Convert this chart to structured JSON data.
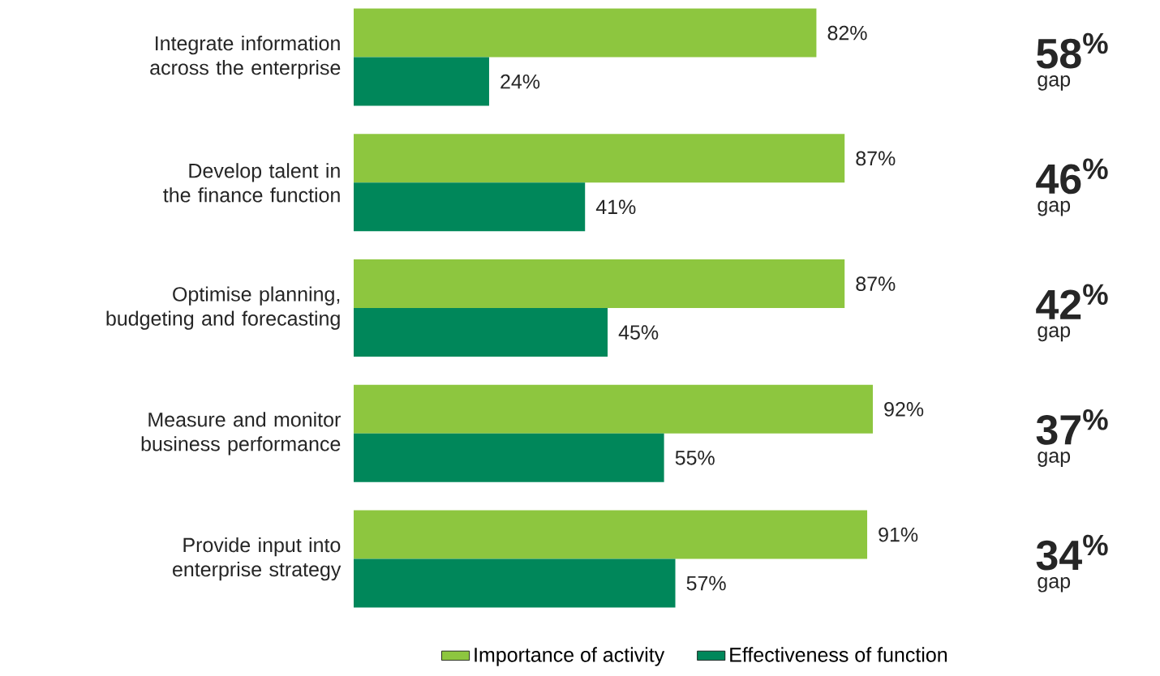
{
  "chart_data": {
    "type": "bar",
    "orientation": "horizontal",
    "categories": [
      "Integrate information across the enterprise",
      "Develop talent in the finance function",
      "Optimise planning, budgeting and forecasting",
      "Measure and monitor business performance",
      "Provide input into enterprise strategy"
    ],
    "series": [
      {
        "name": "Importance of activity",
        "color": "#8dc63f",
        "values": [
          82,
          87,
          87,
          92,
          91
        ],
        "value_labels": [
          "82%",
          "87%",
          "87%",
          "92%",
          "91%"
        ]
      },
      {
        "name": "Effectiveness of function",
        "color": "#00875a",
        "values": [
          24,
          41,
          45,
          55,
          57
        ],
        "value_labels": [
          "24%",
          "41%",
          "45%",
          "55%",
          "57%"
        ]
      }
    ],
    "annotations": [
      "58$^{%}$",
      "gap",
      "46$^{%}$",
      "gap",
      "42$^{%}$",
      "gap",
      "37$^{%}$",
      "gap",
      "34$^{%}$",
      "gap"
    ],
    "legend": "bottom"
  }
}
